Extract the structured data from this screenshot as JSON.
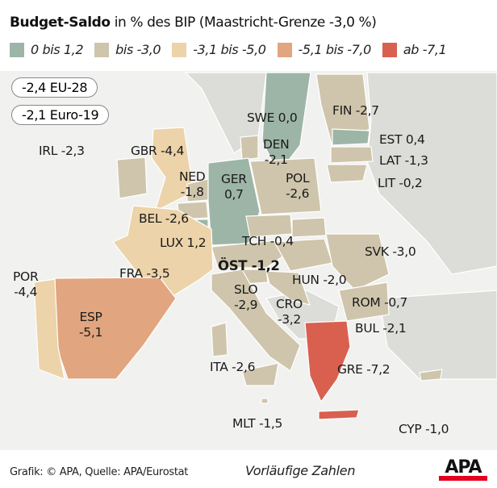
{
  "title": {
    "bold": "Budget-Saldo",
    "rest": " in % des BIP (Maastricht-Grenze -3,0 %)"
  },
  "legend": [
    {
      "label": "0 bis 1,2",
      "color": "#9db5a7"
    },
    {
      "label": "bis -3,0",
      "color": "#cfc5ac"
    },
    {
      "label": "-3,1 bis -5,0",
      "color": "#ecd3a9"
    },
    {
      "label": "-5,1 bis -7,0",
      "color": "#e1a57f"
    },
    {
      "label": "ab -7,1",
      "color": "#d9604f"
    }
  ],
  "aggregates": [
    {
      "label": "-2,4 EU-28"
    },
    {
      "label": "-2,1 Euro-19"
    }
  ],
  "countries": [
    {
      "code": "FIN",
      "value": "-2,7",
      "label": "FIN -2,7"
    },
    {
      "code": "SWE",
      "value": "0,0",
      "label": "SWE 0,0"
    },
    {
      "code": "EST",
      "value": "0,4",
      "label": "EST 0,4"
    },
    {
      "code": "LAT",
      "value": "-1,3",
      "label": "LAT -1,3"
    },
    {
      "code": "LIT",
      "value": "-0,2",
      "label": "LIT -0,2"
    },
    {
      "code": "IRL",
      "value": "-2,3",
      "label": "IRL -2,3"
    },
    {
      "code": "GBR",
      "value": "-4,4",
      "label": "GBR -4,4"
    },
    {
      "code": "DEN",
      "value": "-2,1",
      "label": "DEN\n-2,1"
    },
    {
      "code": "NED",
      "value": "-1,8",
      "label": "NED\n-1,8"
    },
    {
      "code": "GER",
      "value": "0,7",
      "label": "GER\n0,7"
    },
    {
      "code": "POL",
      "value": "-2,6",
      "label": "POL\n-2,6"
    },
    {
      "code": "BEL",
      "value": "-2,6",
      "label": "BEL -2,6"
    },
    {
      "code": "LUX",
      "value": "1,2",
      "label": "LUX 1,2"
    },
    {
      "code": "TCH",
      "value": "-0,4",
      "label": "TCH -0,4"
    },
    {
      "code": "SVK",
      "value": "-3,0",
      "label": "SVK -3,0"
    },
    {
      "code": "ÖST",
      "value": "-1,2",
      "label": "ÖST -1,2"
    },
    {
      "code": "FRA",
      "value": "-3,5",
      "label": "FRA -3,5"
    },
    {
      "code": "HUN",
      "value": "-2,0",
      "label": "HUN -2,0"
    },
    {
      "code": "POR",
      "value": "-4,4",
      "label": "POR\n-4,4"
    },
    {
      "code": "SLO",
      "value": "-2,9",
      "label": "SLO\n-2,9"
    },
    {
      "code": "CRO",
      "value": "-3,2",
      "label": "CRO\n-3,2"
    },
    {
      "code": "ROM",
      "value": "-0,7",
      "label": "ROM -0,7"
    },
    {
      "code": "ESP",
      "value": "-5,1",
      "label": "ESP\n-5,1"
    },
    {
      "code": "BUL",
      "value": "-2,1",
      "label": "BUL -2,1"
    },
    {
      "code": "ITA",
      "value": "-2,6",
      "label": "ITA -2,6"
    },
    {
      "code": "GRE",
      "value": "-7,2",
      "label": "GRE -7,2"
    },
    {
      "code": "MLT",
      "value": "-1,5",
      "label": "MLT -1,5"
    },
    {
      "code": "CYP",
      "value": "-1,0",
      "label": "CYP -1,0"
    }
  ],
  "colors": {
    "sea": "#f1f1ef",
    "non_eu": "#dcdcd8",
    "border": "#ffffff"
  },
  "footer": {
    "credit": "Grafik: © APA, Quelle: APA/Eurostat",
    "note": "Vorläufige Zahlen",
    "logo": "APA"
  }
}
